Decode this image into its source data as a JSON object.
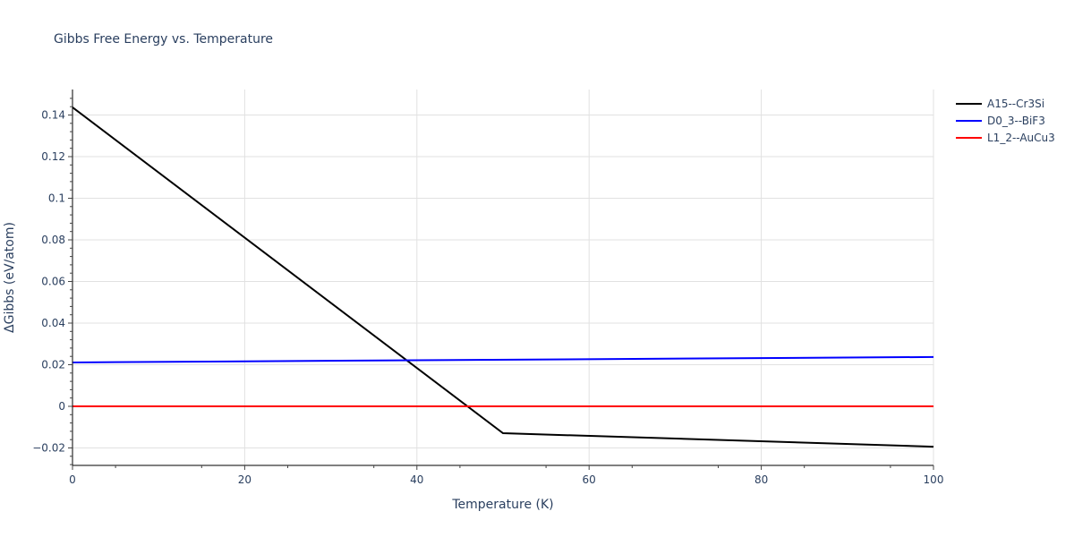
{
  "chart_data": {
    "type": "line",
    "title": "Gibbs Free Energy vs. Temperature",
    "xlabel": "Temperature (K)",
    "ylabel": "ΔGibbs (eV/atom)",
    "xlim": [
      0,
      100
    ],
    "ylim": [
      -0.0285,
      0.1525
    ],
    "xticks": [
      0,
      20,
      40,
      60,
      80,
      100
    ],
    "xtick_labels": [
      "0",
      "20",
      "40",
      "60",
      "80",
      "100"
    ],
    "yticks": [
      -0.02,
      0,
      0.02,
      0.04,
      0.06,
      0.08,
      0.1,
      0.12,
      0.14
    ],
    "ytick_labels": [
      "−0.02",
      "0",
      "0.02",
      "0.04",
      "0.06",
      "0.08",
      "0.1",
      "0.12",
      "0.14"
    ],
    "grid": true,
    "legend_position": "right",
    "series": [
      {
        "name": "A15--Cr3Si",
        "color": "#000000",
        "x": [
          0,
          50,
          100
        ],
        "y": [
          0.1437,
          -0.0129,
          -0.0194
        ]
      },
      {
        "name": "D0_3--BiF3",
        "color": "#0000ff",
        "x": [
          0,
          100
        ],
        "y": [
          0.0211,
          0.0237
        ]
      },
      {
        "name": "L1_2--AuCu3",
        "color": "#ff0000",
        "x": [
          0,
          100
        ],
        "y": [
          0.0,
          0.0
        ]
      }
    ]
  }
}
